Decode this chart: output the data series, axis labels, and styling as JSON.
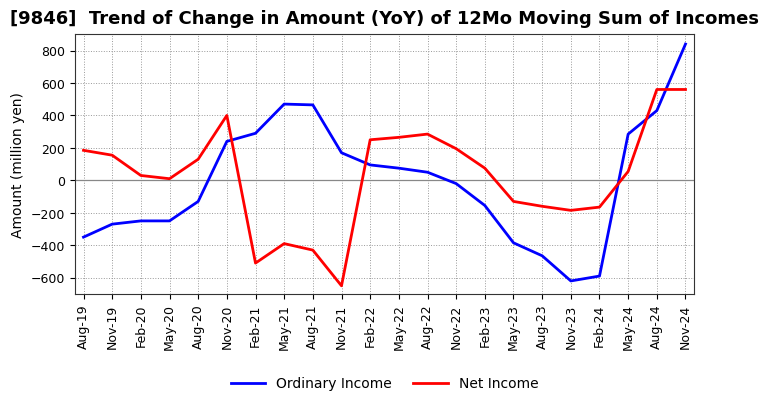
{
  "title": "[9846]  Trend of Change in Amount (YoY) of 12Mo Moving Sum of Incomes",
  "ylabel": "Amount (million yen)",
  "x_labels": [
    "Aug-19",
    "Nov-19",
    "Feb-20",
    "May-20",
    "Aug-20",
    "Nov-20",
    "Feb-21",
    "May-21",
    "Aug-21",
    "Nov-21",
    "Feb-22",
    "May-22",
    "Aug-22",
    "Nov-22",
    "Feb-23",
    "May-23",
    "Aug-23",
    "Nov-23",
    "Feb-24",
    "May-24",
    "Aug-24",
    "Nov-24"
  ],
  "ordinary_income": [
    -350,
    -270,
    -250,
    -250,
    -130,
    240,
    290,
    470,
    465,
    170,
    95,
    75,
    50,
    -20,
    -155,
    -385,
    -465,
    -620,
    -590,
    285,
    430,
    840
  ],
  "net_income": [
    185,
    155,
    30,
    10,
    130,
    400,
    -510,
    -390,
    -430,
    -650,
    250,
    265,
    285,
    195,
    75,
    -130,
    -160,
    -185,
    -165,
    55,
    560,
    560
  ],
  "ordinary_income_color": "#0000ff",
  "net_income_color": "#ff0000",
  "background_color": "#ffffff",
  "plot_bg_color": "#ffffff",
  "grid_color": "#999999",
  "ylim": [
    -700,
    900
  ],
  "yticks": [
    -600,
    -400,
    -200,
    0,
    200,
    400,
    600,
    800
  ],
  "legend_ordinary": "Ordinary Income",
  "legend_net": "Net Income",
  "line_width": 2.0,
  "title_fontsize": 13,
  "tick_fontsize": 9,
  "ylabel_fontsize": 10
}
